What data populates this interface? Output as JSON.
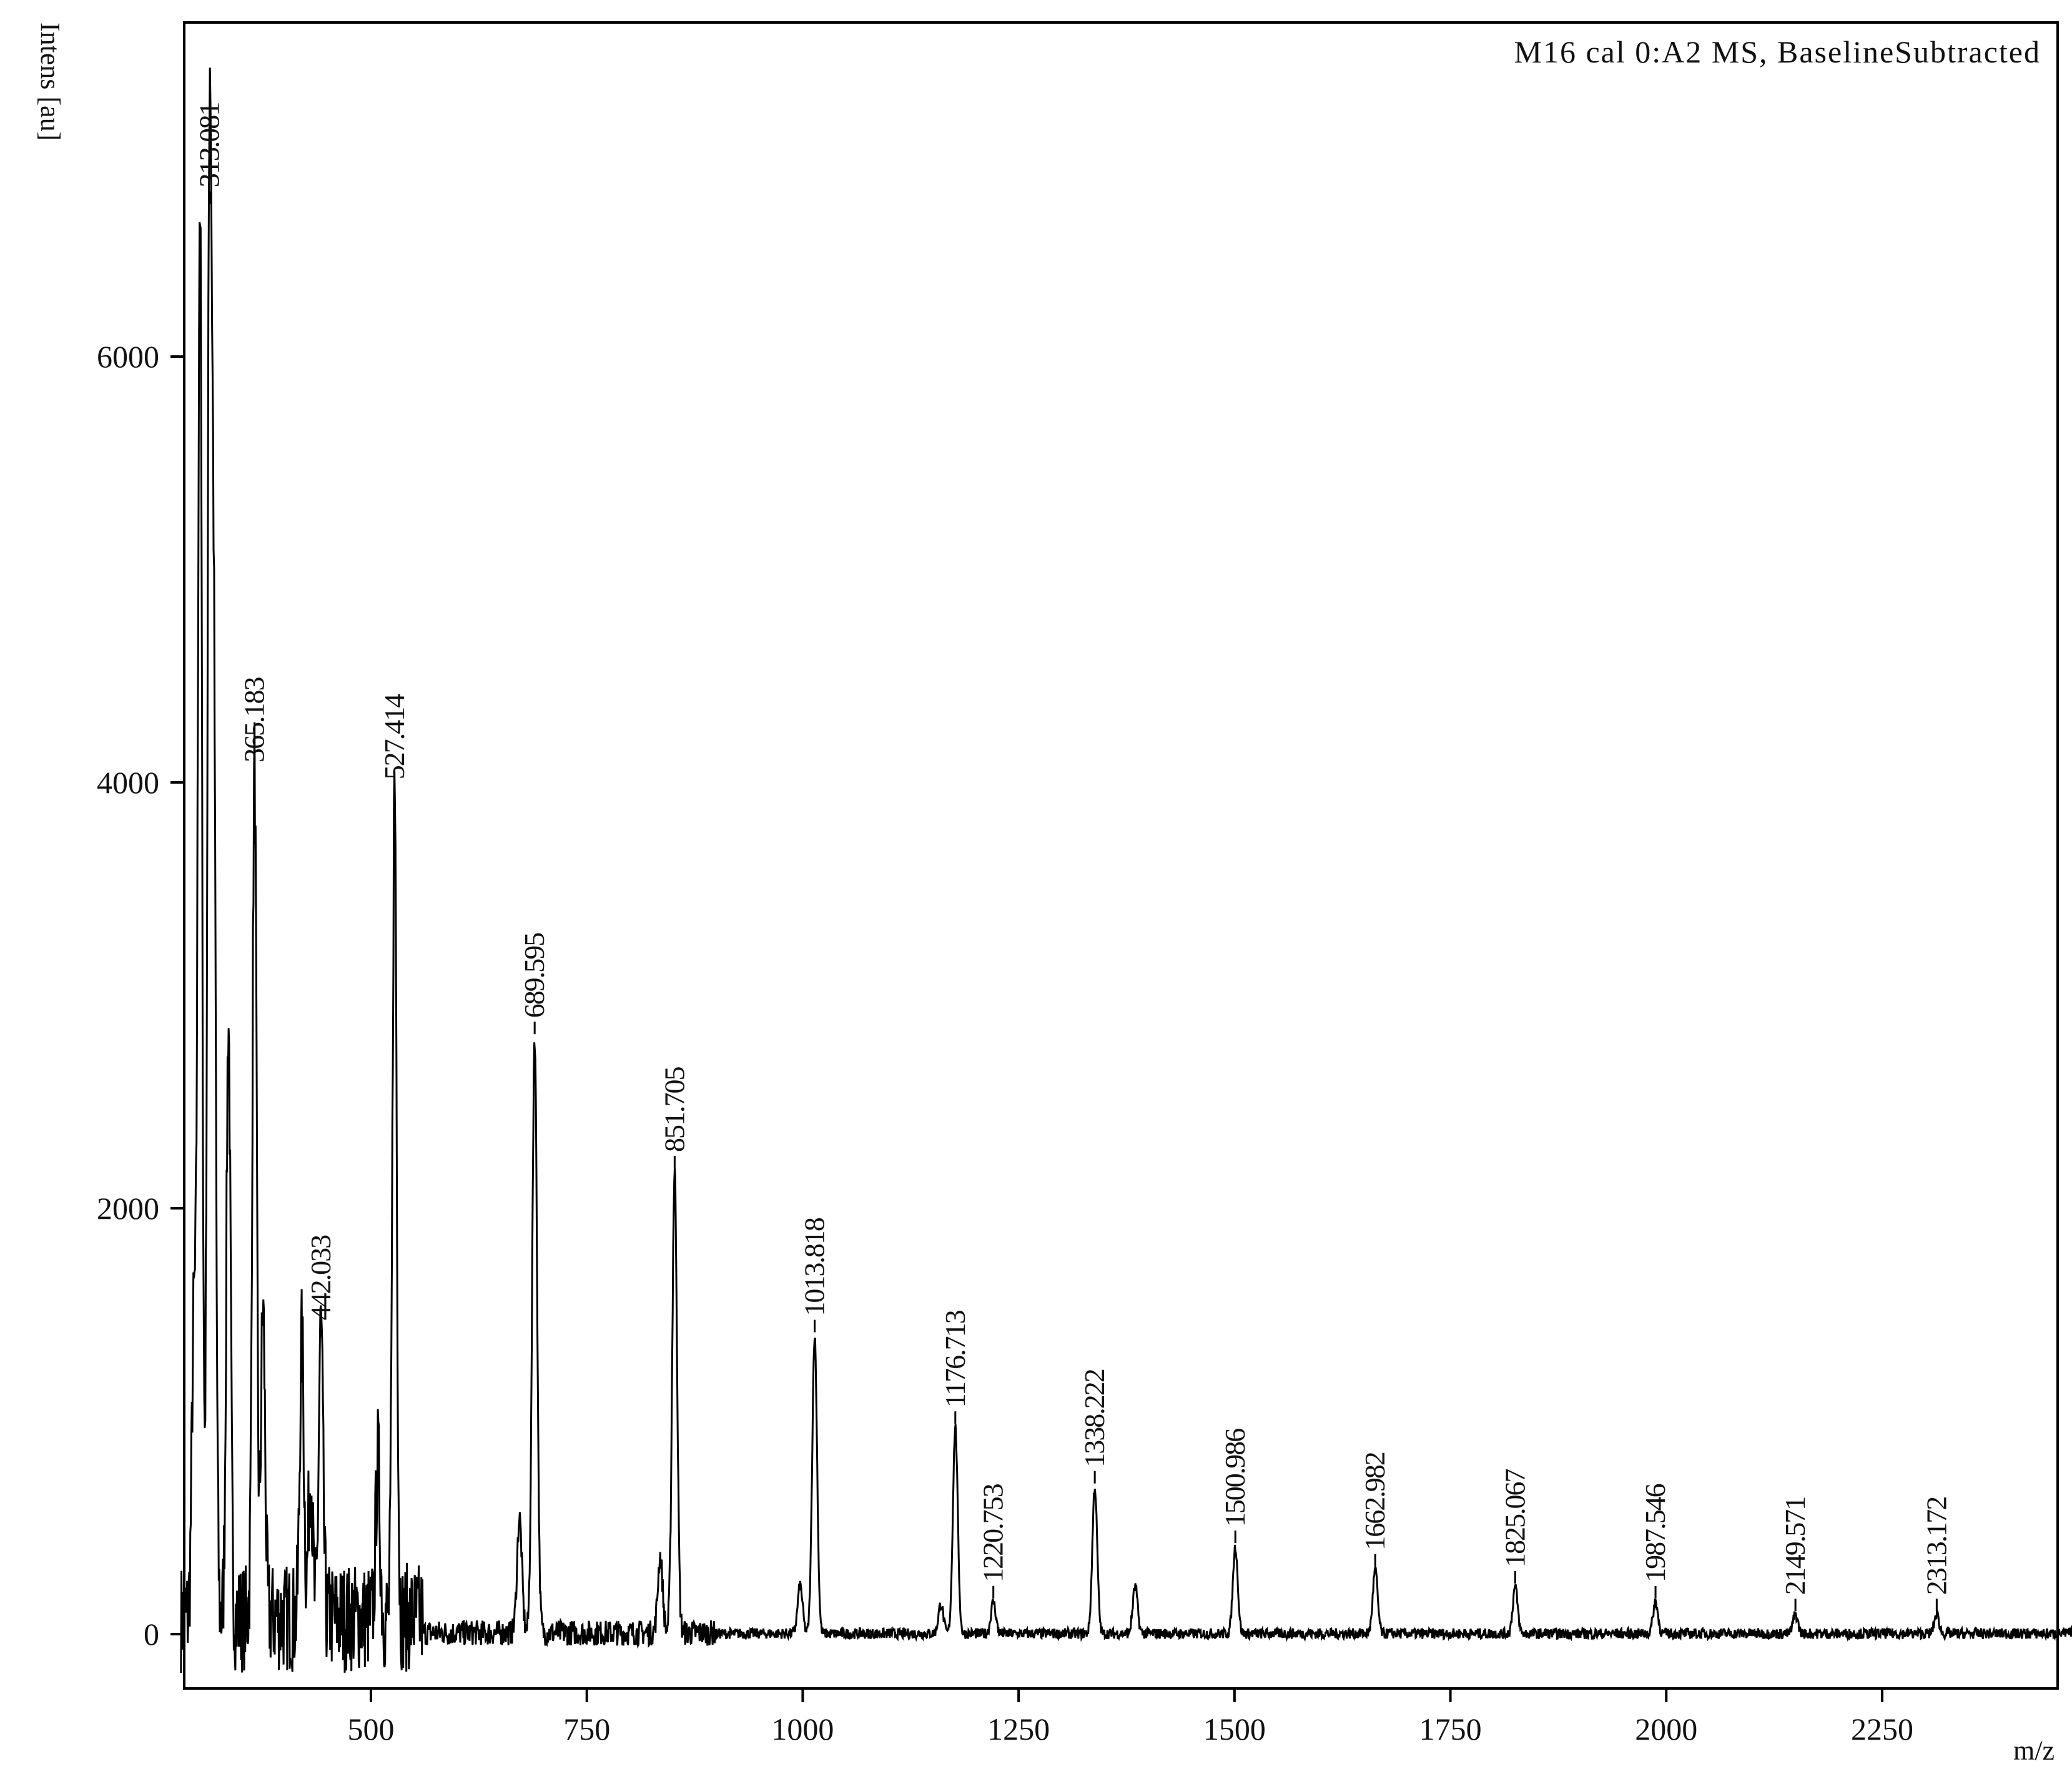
{
  "chart_data": {
    "type": "line",
    "title": "M16 cal 0:A2 MS, BaselineSubtracted",
    "xlabel": "m/z",
    "ylabel": "Intens [au]",
    "xlim": [
      280,
      2500
    ],
    "ylim": [
      -250,
      7500
    ],
    "xticks": [
      500,
      750,
      1000,
      1250,
      1500,
      1750,
      2000,
      2250
    ],
    "yticks": [
      0,
      2000,
      4000,
      6000
    ],
    "grid": false,
    "peaks": [
      {
        "mz": 295,
        "intensity": 1400
      },
      {
        "mz": 302,
        "intensity": 6650
      },
      {
        "mz": 313.081,
        "intensity": 6700,
        "label": "313.081"
      },
      {
        "mz": 318,
        "intensity": 4200
      },
      {
        "mz": 335,
        "intensity": 2800
      },
      {
        "mz": 365.183,
        "intensity": 4000,
        "label": "365.183"
      },
      {
        "mz": 375,
        "intensity": 1450
      },
      {
        "mz": 420,
        "intensity": 1300
      },
      {
        "mz": 430,
        "intensity": 700
      },
      {
        "mz": 442.033,
        "intensity": 1380,
        "label": "442.033"
      },
      {
        "mz": 508,
        "intensity": 750
      },
      {
        "mz": 527.414,
        "intensity": 3920,
        "label": "527.414"
      },
      {
        "mz": 672,
        "intensity": 540
      },
      {
        "mz": 689.595,
        "intensity": 2800,
        "label": "689.595"
      },
      {
        "mz": 835,
        "intensity": 360
      },
      {
        "mz": 851.705,
        "intensity": 2170,
        "label": "851.705"
      },
      {
        "mz": 997,
        "intensity": 230
      },
      {
        "mz": 1013.818,
        "intensity": 1400,
        "label": "1013.818"
      },
      {
        "mz": 1160,
        "intensity": 140
      },
      {
        "mz": 1176.713,
        "intensity": 970,
        "label": "1176.713"
      },
      {
        "mz": 1220.753,
        "intensity": 150,
        "label": "1220.753"
      },
      {
        "mz": 1338.222,
        "intensity": 690,
        "label": "1338.222"
      },
      {
        "mz": 1385,
        "intensity": 220
      },
      {
        "mz": 1500.986,
        "intensity": 410,
        "label": "1500.986"
      },
      {
        "mz": 1662.982,
        "intensity": 300,
        "label": "1662.982"
      },
      {
        "mz": 1825.067,
        "intensity": 220,
        "label": "1825.067"
      },
      {
        "mz": 1987.546,
        "intensity": 150,
        "label": "1987.546"
      },
      {
        "mz": 2149.571,
        "intensity": 90,
        "label": "2149.571"
      },
      {
        "mz": 2313.172,
        "intensity": 90,
        "label": "2313.172"
      },
      {
        "mz": 2475,
        "intensity": 70
      }
    ]
  }
}
